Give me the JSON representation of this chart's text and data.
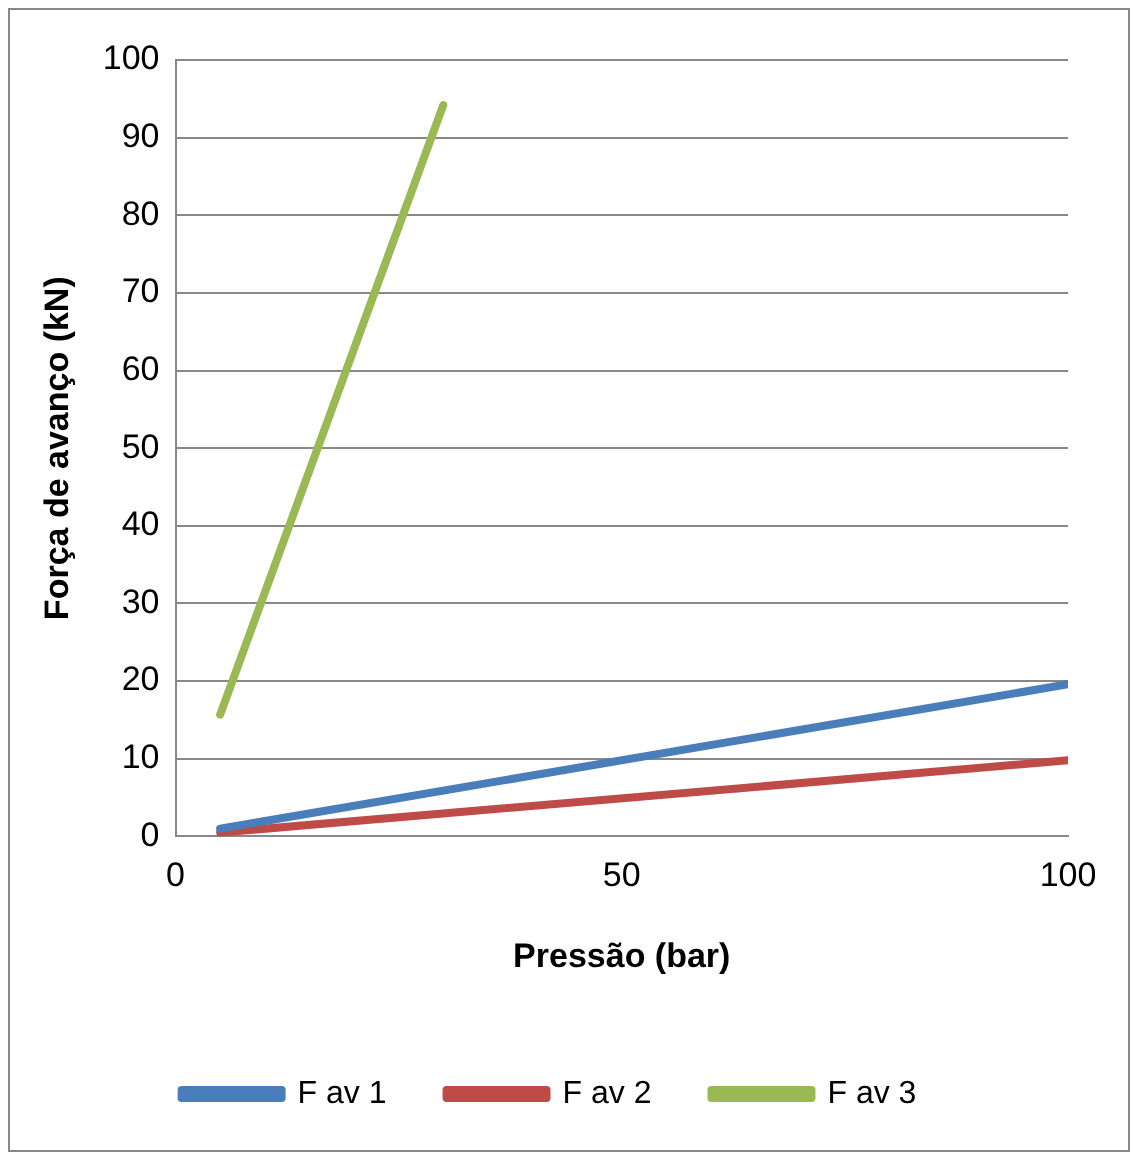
{
  "chart_data": {
    "type": "line",
    "xlabel": "Pressão (bar)",
    "ylabel": "Força de avanço (kN)",
    "xlim": [
      0,
      100
    ],
    "xticks": [
      0,
      50,
      100
    ],
    "ylim": [
      0,
      100
    ],
    "yticks": [
      0,
      10,
      20,
      30,
      40,
      50,
      60,
      70,
      80,
      90,
      100
    ],
    "grid": "y",
    "legend": "bottom",
    "marker": "none",
    "line_style": "solid",
    "series": [
      {
        "name": "F av 1",
        "color": "#4a7ebb",
        "x": [
          5,
          100
        ],
        "values": [
          1,
          19.6
        ]
      },
      {
        "name": "F av 2",
        "color": "#be4b48",
        "x": [
          5,
          100
        ],
        "values": [
          0.5,
          9.8
        ]
      },
      {
        "name": "F av 3",
        "color": "#98b954",
        "x": [
          5,
          30
        ],
        "values": [
          15.7,
          94.2
        ]
      }
    ]
  }
}
